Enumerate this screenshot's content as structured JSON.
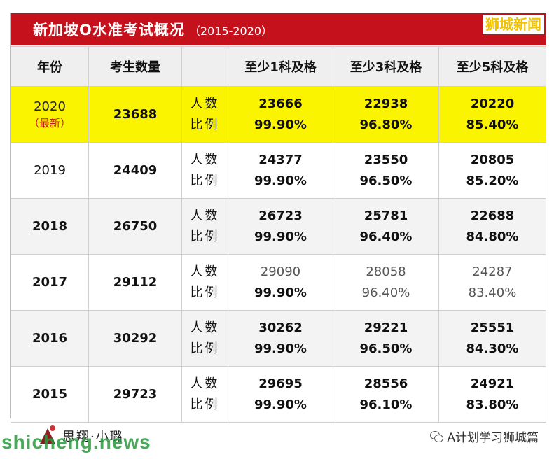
{
  "header": {
    "title": "新加坡O水准考试概况",
    "subtitle": "（2015-2020）",
    "brand": "狮城新闻",
    "title_bg": "#c4111b"
  },
  "columns": [
    "年份",
    "考生数量",
    "",
    "至少1科及格",
    "至少3科及格",
    "至少5科及格"
  ],
  "row_labels": {
    "count": "人数",
    "ratio": "比例"
  },
  "rows": [
    {
      "year": "2020",
      "note": "（最新）",
      "candidates": "23688",
      "pass1_count": "23666",
      "pass1_ratio": "99.90%",
      "pass3_count": "22938",
      "pass3_ratio": "96.80%",
      "pass5_count": "20220",
      "pass5_ratio": "85.40%"
    },
    {
      "year": "2019",
      "note": "",
      "candidates": "24409",
      "pass1_count": "24377",
      "pass1_ratio": "99.90%",
      "pass3_count": "23550",
      "pass3_ratio": "96.50%",
      "pass5_count": "20805",
      "pass5_ratio": "85.20%"
    },
    {
      "year": "2018",
      "note": "",
      "candidates": "26750",
      "pass1_count": "26723",
      "pass1_ratio": "99.90%",
      "pass3_count": "25781",
      "pass3_ratio": "96.40%",
      "pass5_count": "22688",
      "pass5_ratio": "84.80%"
    },
    {
      "year": "2017",
      "note": "",
      "candidates": "29112",
      "pass1_count": "29090",
      "pass1_ratio": "99.90%",
      "pass3_count": "28058",
      "pass3_ratio": "96.40%",
      "pass5_count": "24287",
      "pass5_ratio": "83.40%"
    },
    {
      "year": "2016",
      "note": "",
      "candidates": "30292",
      "pass1_count": "30262",
      "pass1_ratio": "99.90%",
      "pass3_count": "29221",
      "pass3_ratio": "96.50%",
      "pass5_count": "25551",
      "pass5_ratio": "84.30%"
    },
    {
      "year": "2015",
      "note": "",
      "candidates": "29723",
      "pass1_count": "29695",
      "pass1_ratio": "99.90%",
      "pass3_count": "28556",
      "pass3_ratio": "96.10%",
      "pass5_count": "24921",
      "pass5_ratio": "83.80%"
    }
  ],
  "footer": {
    "logo_text": "思翔·小璐",
    "watermark": "shicheng.news",
    "wechat_account": "A计划学习狮城篇",
    "icons": [
      "logo-mark-icon",
      "wechat-icon"
    ]
  },
  "colors": {
    "highlight": "#fbf400",
    "note": "#c8181f",
    "brand": "#f2c300"
  }
}
